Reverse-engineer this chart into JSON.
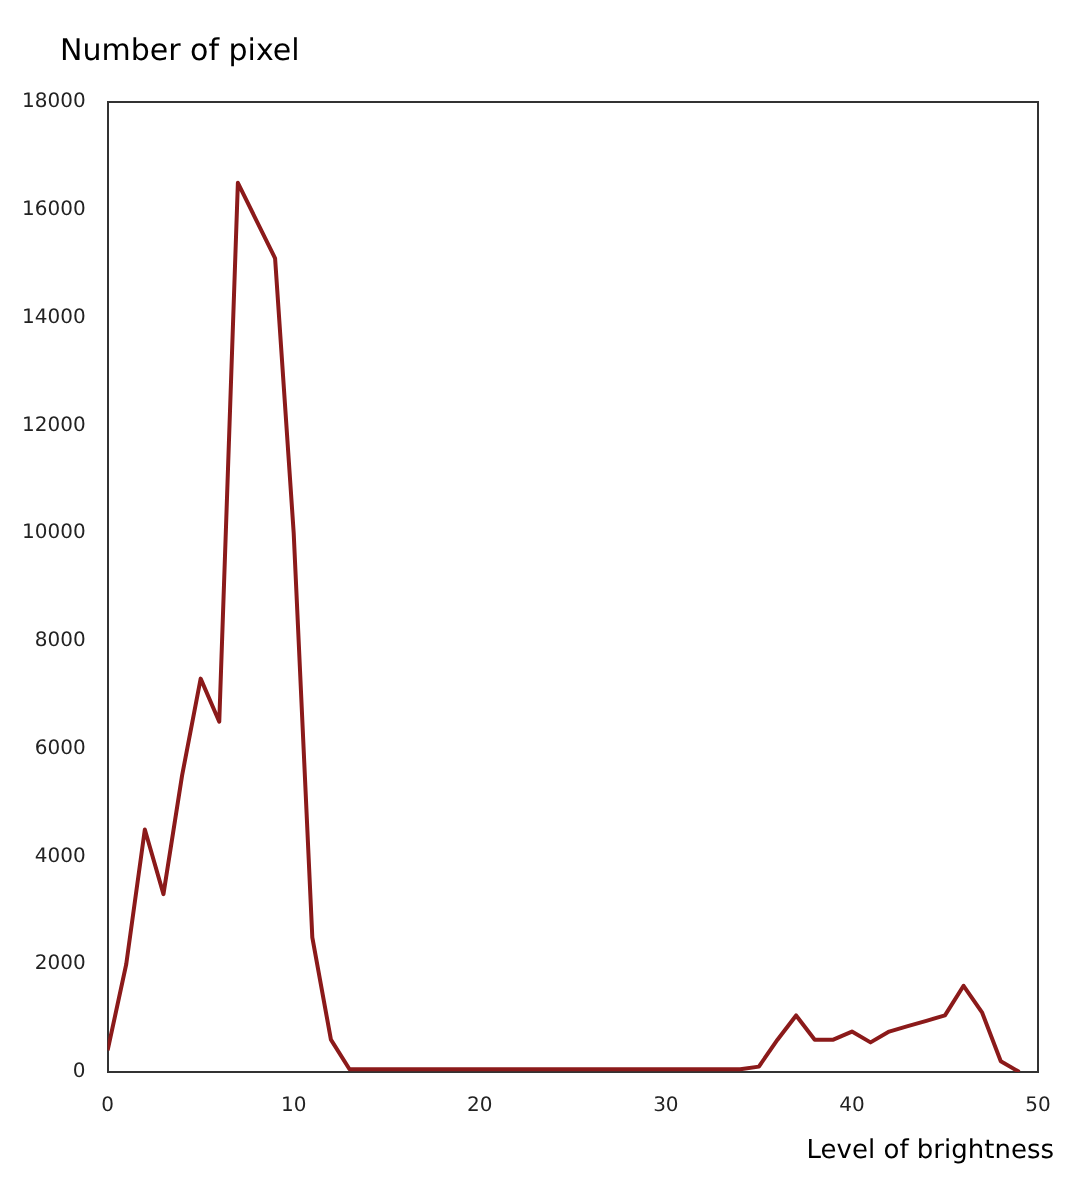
{
  "chart_data": {
    "type": "line",
    "xlabel": "Level of brightness",
    "ylabel": "Number of pixel",
    "x": [
      0,
      1,
      2,
      3,
      4,
      5,
      6,
      7,
      8,
      9,
      10,
      11,
      12,
      13,
      14,
      15,
      16,
      17,
      18,
      19,
      20,
      21,
      22,
      23,
      24,
      25,
      26,
      27,
      28,
      29,
      30,
      31,
      32,
      33,
      34,
      35,
      36,
      37,
      38,
      39,
      40,
      41,
      42,
      43,
      44,
      45,
      46,
      47,
      48,
      49
    ],
    "series": [
      {
        "color": "#8b1a1a",
        "values": [
          400,
          2000,
          4500,
          3300,
          5500,
          7300,
          6500,
          16500,
          15800,
          15100,
          10000,
          2500,
          600,
          50,
          50,
          50,
          50,
          50,
          50,
          50,
          50,
          50,
          50,
          50,
          50,
          50,
          50,
          50,
          50,
          50,
          50,
          50,
          50,
          50,
          50,
          100,
          600,
          1050,
          600,
          600,
          750,
          550,
          750,
          850,
          950,
          1050,
          1600,
          1100,
          200,
          0
        ]
      }
    ],
    "xlim": [
      0,
      50
    ],
    "xticks": [
      0,
      10,
      20,
      30,
      40,
      50
    ],
    "ylim": [
      0,
      18000
    ],
    "yticks": [
      0,
      2000,
      4000,
      6000,
      8000,
      10000,
      12000,
      14000,
      16000,
      18000
    ],
    "grid": false,
    "legend": false,
    "marker": "none",
    "line_style": "solid"
  }
}
